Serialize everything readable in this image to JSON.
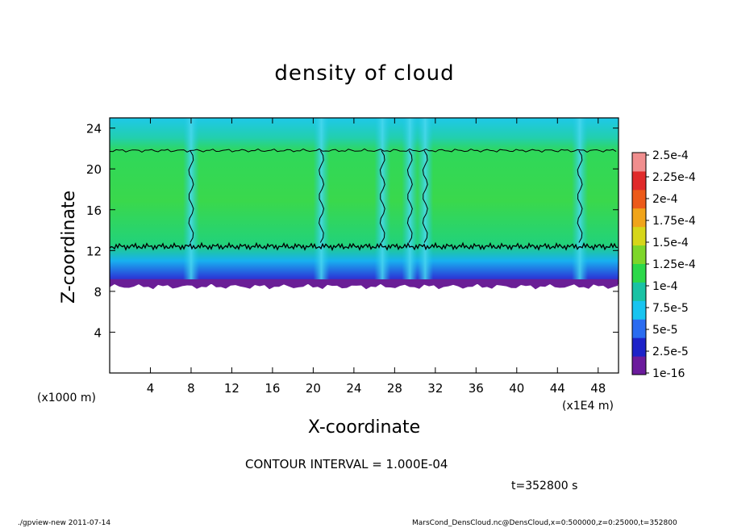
{
  "title": "density of cloud",
  "contour_interval": "CONTOUR INTERVAL = 1.000E-04",
  "time_label": "t=352800 s",
  "footer": {
    "left": "./gpview-new  2011-07-14",
    "right": "MarsCond_DensCloud.nc@DensCloud,x=0:500000,z=0:25000,t=352800"
  },
  "colors": {
    "colorbar": [
      "#6b1b9c",
      "#1d22c8",
      "#2a6cf0",
      "#18c4f0",
      "#19c2a4",
      "#2cd84a",
      "#7ed62a",
      "#d6d61a",
      "#f0a41a",
      "#ec5a1a",
      "#e02a2a",
      "#f08e8e"
    ]
  },
  "chart_data": {
    "type": "heatmap",
    "title": "density of cloud",
    "xlabel": "X-coordinate",
    "ylabel": "Z-coordinate",
    "x_unit_note": "(x1E4 m)",
    "y_unit_note": "(x1000 m)",
    "xlim": [
      0,
      50
    ],
    "ylim": [
      0,
      25
    ],
    "x_ticks": [
      4,
      8,
      12,
      16,
      20,
      24,
      28,
      32,
      36,
      40,
      44,
      48
    ],
    "y_ticks": [
      4,
      8,
      12,
      16,
      20,
      24
    ],
    "colorbar_labels": [
      "1e-16",
      "2.5e-5",
      "5e-5",
      "7.5e-5",
      "1e-4",
      "1.25e-4",
      "1.5e-4",
      "1.75e-4",
      "2e-4",
      "2.25e-4",
      "2.5e-4"
    ],
    "cloud_base_z": 8.7,
    "cloud_top_z": 21.8,
    "contour_level": 0.0001,
    "contour_lower_z": 12.4,
    "gaps_x": [
      8.0,
      20.8,
      26.8,
      29.5,
      31.0,
      46.2
    ],
    "contour_interval": 0.0001,
    "time": "t=352800 s"
  }
}
